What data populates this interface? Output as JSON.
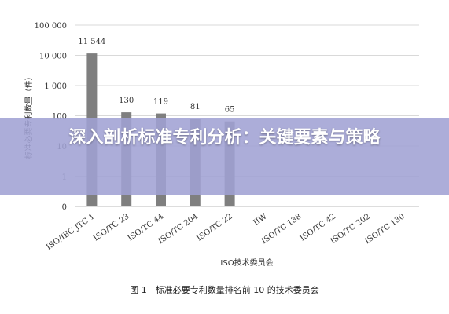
{
  "chart_data": {
    "type": "bar",
    "scale": "log",
    "ylim": [
      0,
      100000
    ],
    "yticks": [
      "100 000",
      "10 000",
      "1 000",
      "100",
      "10",
      "1",
      "0"
    ],
    "ylabel": "标准必要专利数量（件）",
    "xlabel": "ISO技术委员会",
    "categories": [
      "ISO/IEC JTC 1",
      "ISO/TC 23",
      "ISO/TC 44",
      "ISO/TC 204",
      "ISO/TC 22",
      "IIW",
      "ISO/TC 138",
      "ISO/TC 42",
      "ISO/TC 202",
      "ISO/TC 130"
    ],
    "values": [
      11544,
      130,
      119,
      81,
      65,
      null,
      null,
      null,
      null,
      null
    ],
    "data_labels": [
      "11 544",
      "130",
      "119",
      "81",
      "65",
      "",
      "",
      "",
      "",
      ""
    ],
    "bar_color": "#7f7f7f",
    "grid": true
  },
  "caption": "图 1　标准必要专利数量排名前 10 的技术委员会",
  "overlay": {
    "title": "深入剖析标准专利分析：关键要素与策略",
    "background": "#a0a2d4"
  }
}
